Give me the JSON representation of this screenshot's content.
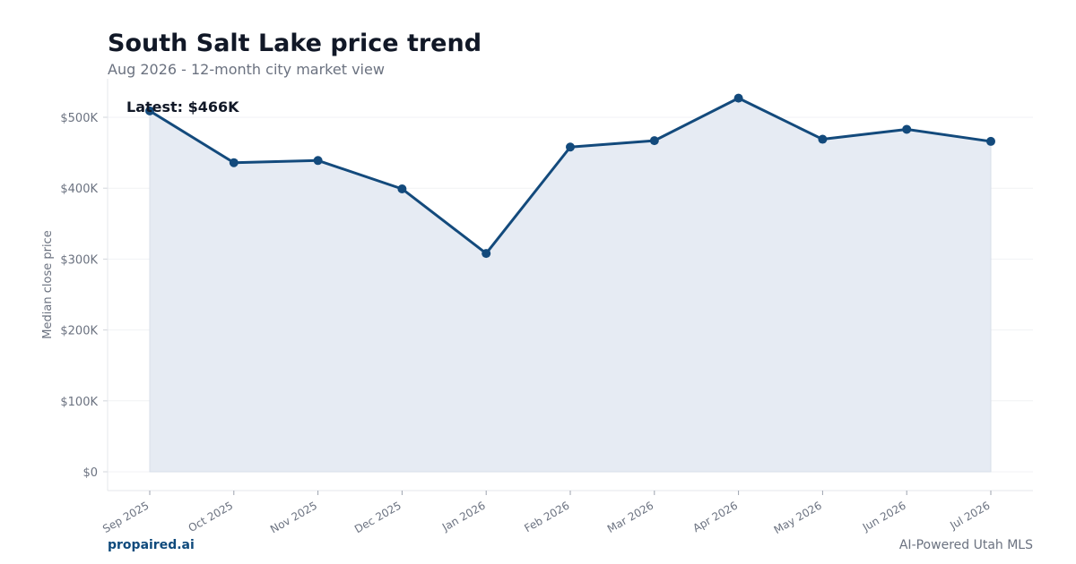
{
  "header": {
    "title": "South Salt Lake price trend",
    "subtitle": "Aug 2026 - 12-month city market view"
  },
  "footer": {
    "brand": "propaired.ai",
    "tagline": "AI-Powered Utah MLS"
  },
  "colors": {
    "line": "#134a7c",
    "area": "#e6ebf3",
    "grid": "#f1f2f4",
    "axis": "#e5e7eb",
    "tick_text": "#6b7280"
  },
  "chart_data": {
    "type": "area",
    "x": [
      "Sep 2025",
      "Oct 2025",
      "Nov 2025",
      "Dec 2025",
      "Jan 2026",
      "Feb 2026",
      "Mar 2026",
      "Apr 2026",
      "May 2026",
      "Jun 2026",
      "Jul 2026"
    ],
    "series": [
      {
        "values": [
          509000,
          436000,
          439000,
          399000,
          308000,
          458000,
          467000,
          527000,
          469000,
          483000,
          466000
        ]
      }
    ],
    "ylabel": "Median close price",
    "ylim": [
      0,
      555000
    ],
    "yticks": [
      0,
      100000,
      200000,
      300000,
      400000,
      500000
    ],
    "ytick_labels": [
      "$0",
      "$100K",
      "$200K",
      "$300K",
      "$400K",
      "$500K"
    ],
    "annotation": "Latest: $466K",
    "grid": true,
    "legend": "none"
  }
}
